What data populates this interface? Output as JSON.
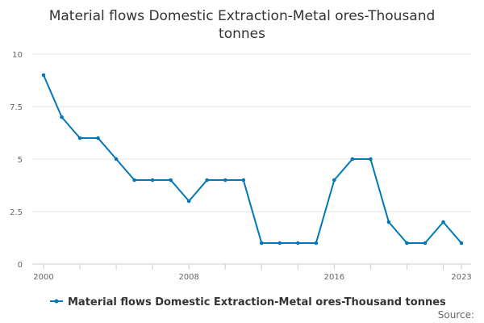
{
  "chart_data": {
    "type": "line",
    "title": "Material flows Domestic Extraction-Metal ores-Thousand tonnes",
    "title_lines": [
      "Material flows Domestic Extraction-Metal ores-Thousand",
      "tonnes"
    ],
    "xlabel": "",
    "ylabel": "",
    "x": [
      2000,
      2001,
      2002,
      2003,
      2004,
      2005,
      2006,
      2007,
      2008,
      2009,
      2010,
      2011,
      2012,
      2013,
      2014,
      2015,
      2016,
      2017,
      2018,
      2019,
      2020,
      2021,
      2022,
      2023
    ],
    "series": [
      {
        "name": "Material flows Domestic Extraction-Metal ores-Thousand tonnes",
        "values": [
          9,
          7,
          6,
          6,
          5,
          4,
          4,
          4,
          3,
          4,
          4,
          4,
          1,
          1,
          1,
          1,
          4,
          5,
          5,
          2,
          1,
          1,
          2,
          1
        ],
        "color": "#0077b6"
      }
    ],
    "xlim": [
      2000,
      2023
    ],
    "ylim": [
      0,
      10
    ],
    "x_tick_labels": [
      "2000",
      "2008",
      "2016",
      "2023"
    ],
    "x_tick_values": [
      2000,
      2008,
      2016,
      2023
    ],
    "y_tick_labels": [
      "0",
      "2.5",
      "5",
      "7.5",
      "10"
    ],
    "y_tick_values": [
      0,
      2.5,
      5,
      7.5,
      10
    ],
    "grid": "horizontal",
    "legend_position": "bottom",
    "source_label": "Source:"
  }
}
